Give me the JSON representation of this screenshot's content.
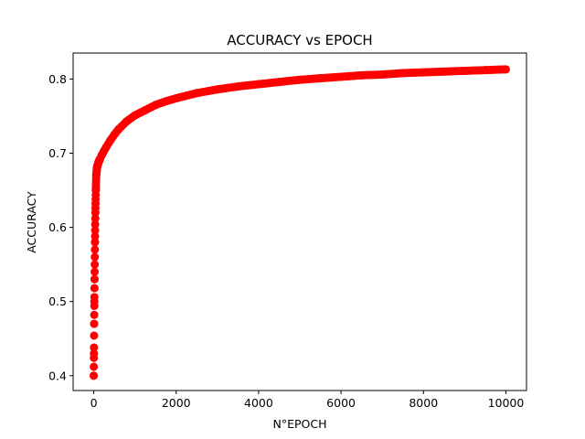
{
  "chart_data": {
    "type": "scatter",
    "title": "ACCURACY vs EPOCH",
    "xlabel": "N°EPOCH",
    "ylabel": "ACCURACY",
    "xlim": [
      -500,
      10500
    ],
    "ylim": [
      0.38,
      0.835
    ],
    "xticks": [
      0,
      2000,
      4000,
      6000,
      8000,
      10000
    ],
    "xtick_labels": [
      "0",
      "2000",
      "4000",
      "6000",
      "8000",
      "10000"
    ],
    "yticks": [
      0.4,
      0.5,
      0.6,
      0.7,
      0.8
    ],
    "ytick_labels": [
      "0.4",
      "0.5",
      "0.6",
      "0.7",
      "0.8"
    ],
    "grid": false,
    "marker_color": "#ff0000",
    "series": [
      {
        "x": [
          0,
          5,
          10,
          15,
          20,
          30,
          40,
          50,
          60,
          80,
          100,
          125,
          150,
          200,
          250,
          300,
          400,
          500,
          600,
          800,
          1000,
          1250,
          1500,
          1750,
          2000,
          2500,
          3000,
          3500,
          4000,
          4500,
          5000,
          5500,
          6000,
          6500,
          7000,
          7500,
          8000,
          8500,
          9000,
          9500,
          10000
        ],
        "y": [
          0.4,
          0.43,
          0.47,
          0.5,
          0.53,
          0.58,
          0.62,
          0.65,
          0.67,
          0.681,
          0.685,
          0.689,
          0.692,
          0.698,
          0.703,
          0.708,
          0.717,
          0.725,
          0.732,
          0.743,
          0.751,
          0.758,
          0.765,
          0.77,
          0.774,
          0.781,
          0.786,
          0.79,
          0.793,
          0.796,
          0.799,
          0.801,
          0.803,
          0.805,
          0.806,
          0.808,
          0.809,
          0.81,
          0.811,
          0.812,
          0.813
        ]
      }
    ]
  }
}
